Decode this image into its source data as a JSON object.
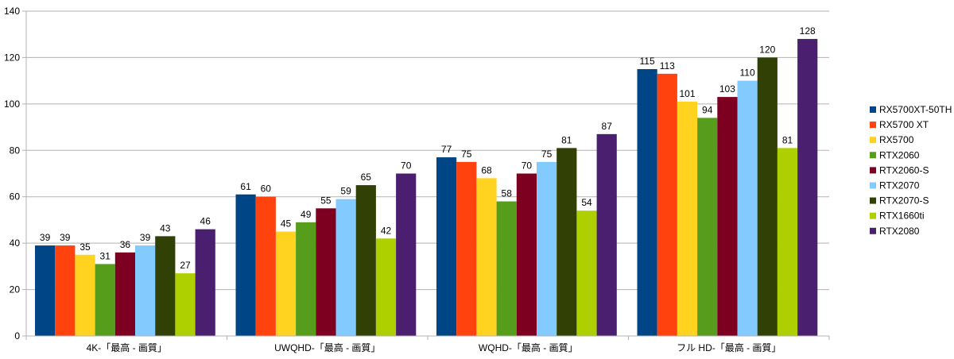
{
  "chart_data": {
    "type": "bar",
    "title": "",
    "xlabel": "",
    "ylabel": "",
    "ylim": [
      0,
      140
    ],
    "yticks": [
      0,
      20,
      40,
      60,
      80,
      100,
      120,
      140
    ],
    "grid": true,
    "legend": "right",
    "data_labels": true,
    "categories": [
      "4K-「最高 - 画質」",
      "UWQHD-「最高 - 画質」",
      "WQHD-「最高 - 画質」",
      "フル HD-「最高 - 画質」"
    ],
    "series": [
      {
        "name": "RX5700XT-50TH",
        "color": "#004586",
        "values": [
          39,
          61,
          77,
          115
        ]
      },
      {
        "name": "RX5700 XT",
        "color": "#FF420E",
        "values": [
          39,
          60,
          75,
          113
        ]
      },
      {
        "name": "RX5700",
        "color": "#FFD320",
        "values": [
          35,
          45,
          68,
          101
        ]
      },
      {
        "name": "RTX2060",
        "color": "#579D1C",
        "values": [
          31,
          49,
          58,
          94
        ]
      },
      {
        "name": "RTX2060-S",
        "color": "#7E0021",
        "values": [
          36,
          55,
          70,
          103
        ]
      },
      {
        "name": "RTX2070",
        "color": "#83CAFF",
        "values": [
          39,
          59,
          75,
          110
        ]
      },
      {
        "name": "RTX2070-S",
        "color": "#314004",
        "values": [
          43,
          65,
          81,
          120
        ]
      },
      {
        "name": "RTX1660ti",
        "color": "#AECF00",
        "values": [
          27,
          42,
          54,
          81
        ]
      },
      {
        "name": "RTX2080",
        "color": "#4B1F6F",
        "values": [
          46,
          70,
          87,
          128
        ]
      }
    ]
  }
}
